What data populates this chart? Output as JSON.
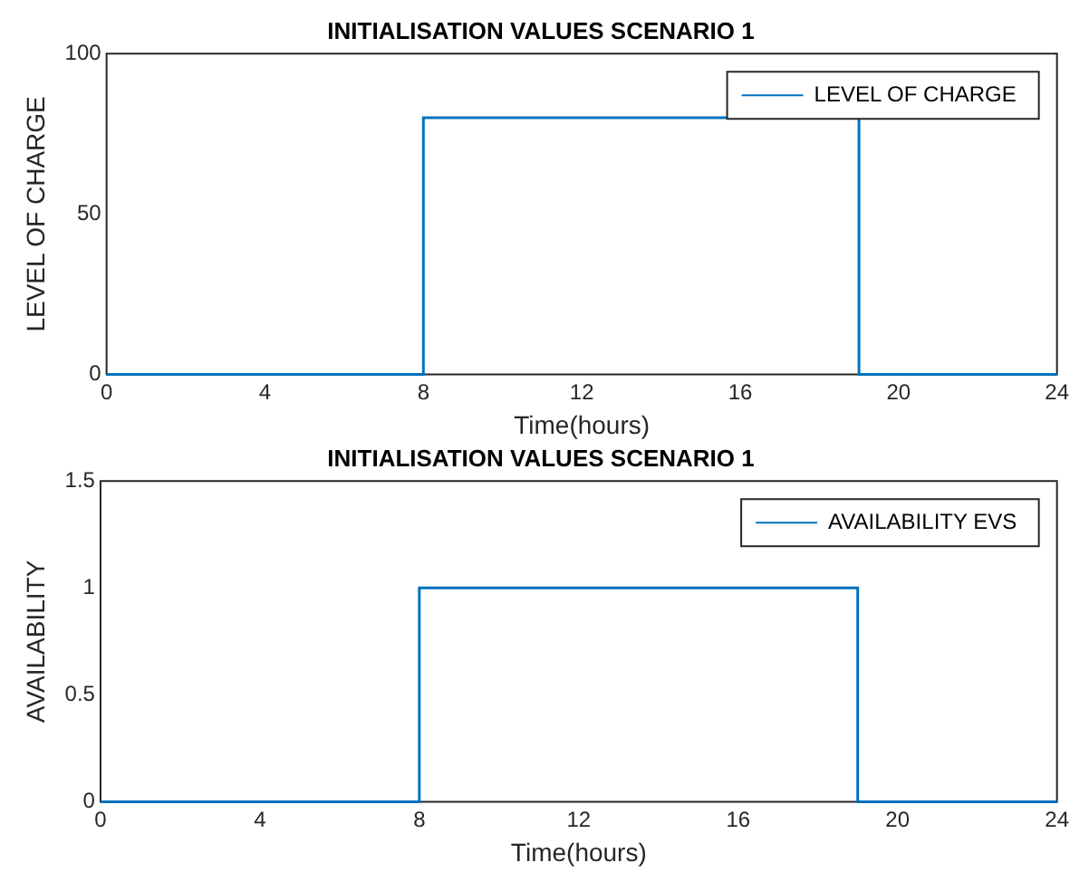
{
  "chart_data": [
    {
      "type": "step",
      "title": "INITIALISATION VALUES SCENARIO 1",
      "xlabel": "Time(hours)",
      "ylabel": "LEVEL OF CHARGE",
      "x": [
        0,
        8,
        19,
        24
      ],
      "series": [
        {
          "name": "LEVEL OF CHARGE",
          "color": "#0072bd",
          "values": [
            0,
            80,
            0,
            0
          ]
        }
      ],
      "xlim": [
        0,
        24
      ],
      "xticks": [
        0,
        4,
        8,
        12,
        16,
        20,
        24
      ],
      "ylim": [
        0,
        100
      ],
      "yticks": [
        0,
        50,
        100
      ],
      "grid": false,
      "legend": "top right"
    },
    {
      "type": "step",
      "title": "INITIALISATION VALUES SCENARIO 1",
      "xlabel": "Time(hours)",
      "ylabel": "AVAILABILITY",
      "x": [
        0,
        8,
        19,
        24
      ],
      "series": [
        {
          "name": "AVAILABILITY EVS",
          "color": "#0072bd",
          "values": [
            0,
            1,
            0,
            0
          ]
        }
      ],
      "xlim": [
        0,
        24
      ],
      "xticks": [
        0,
        4,
        8,
        12,
        16,
        20,
        24
      ],
      "ylim": [
        0,
        1.5
      ],
      "yticks": [
        0,
        0.5,
        1,
        1.5
      ],
      "grid": false,
      "legend": "top right"
    }
  ]
}
